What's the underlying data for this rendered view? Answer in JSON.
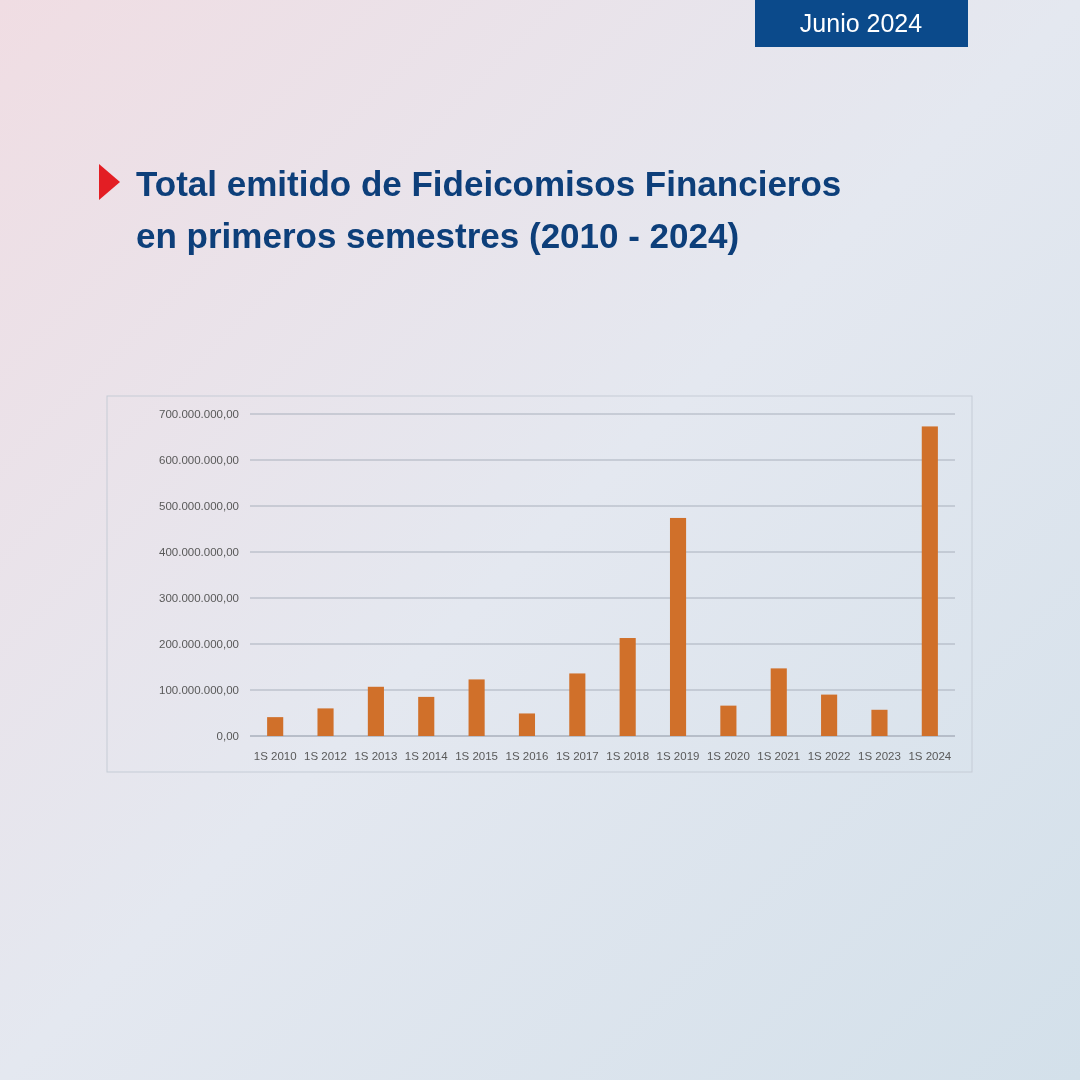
{
  "chart_data": {
    "type": "bar",
    "title": "Total emitido de Fideicomisos Financieros en primeros semestres (2010 - 2024)",
    "subtitle": "Junio 2024",
    "categories": [
      "1S 2010",
      "1S 2012",
      "1S 2013",
      "1S 2014",
      "1S 2015",
      "1S 2016",
      "1S 2017",
      "1S 2018",
      "1S 2019",
      "1S 2020",
      "1S 2021",
      "1S 2022",
      "1S 2023",
      "1S 2024"
    ],
    "values": [
      41000000,
      60000000,
      107000000,
      85000000,
      123000000,
      49000000,
      136000000,
      213000000,
      474000000,
      66000000,
      147000000,
      90000000,
      57000000,
      673000000
    ],
    "color": "#d0702a",
    "ylim": [
      0,
      700000000
    ],
    "yticks": [
      {
        "value": 0,
        "label": "0,00"
      },
      {
        "value": 100000000,
        "label": "100.000.000,00"
      },
      {
        "value": 200000000,
        "label": "200.000.000,00"
      },
      {
        "value": 300000000,
        "label": "300.000.000,00"
      },
      {
        "value": 400000000,
        "label": "400.000.000,00"
      },
      {
        "value": 500000000,
        "label": "500.000.000,00"
      },
      {
        "value": 600000000,
        "label": "600.000.000,00"
      },
      {
        "value": 700000000,
        "label": "700.000.000,00"
      }
    ],
    "grid": "y"
  }
}
